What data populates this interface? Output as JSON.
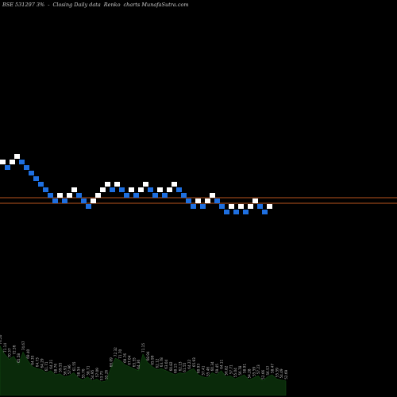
{
  "header": {
    "symbol": "BSE 531297 3%",
    "separator": "-",
    "description": "Closing Daily data",
    "chart_kind": "Renko",
    "source": "charts MunafaSutra.com"
  },
  "colors": {
    "background": "#000000",
    "up_brick": "#ffffff",
    "down_brick": "#1e6fe0",
    "reference_line": "#b8551e",
    "volume_fill": "#0a2a0a",
    "volume_label": "#bfbfbf"
  },
  "chart_data": [
    {
      "type": "renko",
      "bricks": [
        {
          "dir": "up",
          "level": 18
        },
        {
          "dir": "down",
          "level": 17
        },
        {
          "dir": "up",
          "level": 18
        },
        {
          "dir": "up",
          "level": 19
        },
        {
          "dir": "down",
          "level": 18
        },
        {
          "dir": "down",
          "level": 17
        },
        {
          "dir": "down",
          "level": 16
        },
        {
          "dir": "down",
          "level": 15
        },
        {
          "dir": "down",
          "level": 14
        },
        {
          "dir": "down",
          "level": 13
        },
        {
          "dir": "down",
          "level": 12
        },
        {
          "dir": "down",
          "level": 11
        },
        {
          "dir": "up",
          "level": 12
        },
        {
          "dir": "down",
          "level": 11
        },
        {
          "dir": "up",
          "level": 12
        },
        {
          "dir": "up",
          "level": 13
        },
        {
          "dir": "down",
          "level": 12
        },
        {
          "dir": "down",
          "level": 11
        },
        {
          "dir": "down",
          "level": 10
        },
        {
          "dir": "up",
          "level": 11
        },
        {
          "dir": "up",
          "level": 12
        },
        {
          "dir": "up",
          "level": 13
        },
        {
          "dir": "up",
          "level": 14
        },
        {
          "dir": "down",
          "level": 13
        },
        {
          "dir": "up",
          "level": 14
        },
        {
          "dir": "down",
          "level": 13
        },
        {
          "dir": "down",
          "level": 12
        },
        {
          "dir": "up",
          "level": 13
        },
        {
          "dir": "down",
          "level": 12
        },
        {
          "dir": "up",
          "level": 13
        },
        {
          "dir": "up",
          "level": 14
        },
        {
          "dir": "down",
          "level": 13
        },
        {
          "dir": "down",
          "level": 12
        },
        {
          "dir": "up",
          "level": 13
        },
        {
          "dir": "down",
          "level": 12
        },
        {
          "dir": "up",
          "level": 13
        },
        {
          "dir": "up",
          "level": 14
        },
        {
          "dir": "down",
          "level": 13
        },
        {
          "dir": "down",
          "level": 12
        },
        {
          "dir": "down",
          "level": 11
        },
        {
          "dir": "down",
          "level": 10
        },
        {
          "dir": "up",
          "level": 11
        },
        {
          "dir": "down",
          "level": 10
        },
        {
          "dir": "up",
          "level": 11
        },
        {
          "dir": "up",
          "level": 12
        },
        {
          "dir": "down",
          "level": 11
        },
        {
          "dir": "down",
          "level": 10
        },
        {
          "dir": "down",
          "level": 9
        },
        {
          "dir": "up",
          "level": 10
        },
        {
          "dir": "down",
          "level": 9
        },
        {
          "dir": "up",
          "level": 10
        },
        {
          "dir": "down",
          "level": 9
        },
        {
          "dir": "up",
          "level": 10
        },
        {
          "dir": "up",
          "level": 11
        },
        {
          "dir": "down",
          "level": 10
        },
        {
          "dir": "down",
          "level": 9
        },
        {
          "dir": "up",
          "level": 10
        }
      ],
      "reference_levels": [
        12,
        11
      ]
    },
    {
      "type": "area",
      "values": [
        48,
        40,
        35,
        38,
        30,
        42,
        34,
        28,
        26,
        25,
        22,
        24,
        20,
        21,
        18,
        19,
        22,
        17,
        15,
        18,
        14,
        16,
        13,
        14,
        26,
        36,
        34,
        30,
        28,
        26,
        24,
        40,
        32,
        28,
        25,
        26,
        24,
        22,
        20,
        22,
        21,
        24,
        26,
        20,
        18,
        17,
        22,
        20,
        24,
        18,
        19,
        16,
        18,
        20,
        15,
        17,
        19,
        14,
        18,
        20,
        16,
        15,
        14
      ],
      "labels": [
        "76.20",
        "71.14",
        "70.37",
        "72.56",
        "65.58",
        "74.67",
        "69.40",
        "64.35",
        "64.73",
        "64.29",
        "61.71",
        "64.21",
        "58.76",
        "59.55",
        "56.91",
        "57.96",
        "61.55",
        "58.54",
        "55.76",
        "58.71",
        "54.95",
        "57.09",
        "53.75",
        "55.26",
        "66.09",
        "72.32",
        "71.70",
        "69.76",
        "67.04",
        "65.55",
        "64.36",
        "71.15",
        "68.94",
        "65.99",
        "62.12",
        "63.78",
        "63.04",
        "60.82",
        "60.15",
        "62.13",
        "61.55",
        "64.22",
        "65.93",
        "60.93",
        "57.41",
        "55.46",
        "60.34",
        "59.45",
        "64.11",
        "56.82",
        "57.71",
        "55.04",
        "56.78",
        "58.91",
        "54.28",
        "55.59",
        "57.23",
        "52.66",
        "56.57",
        "58.47",
        "55.59",
        "54.49",
        "52.69"
      ]
    }
  ]
}
